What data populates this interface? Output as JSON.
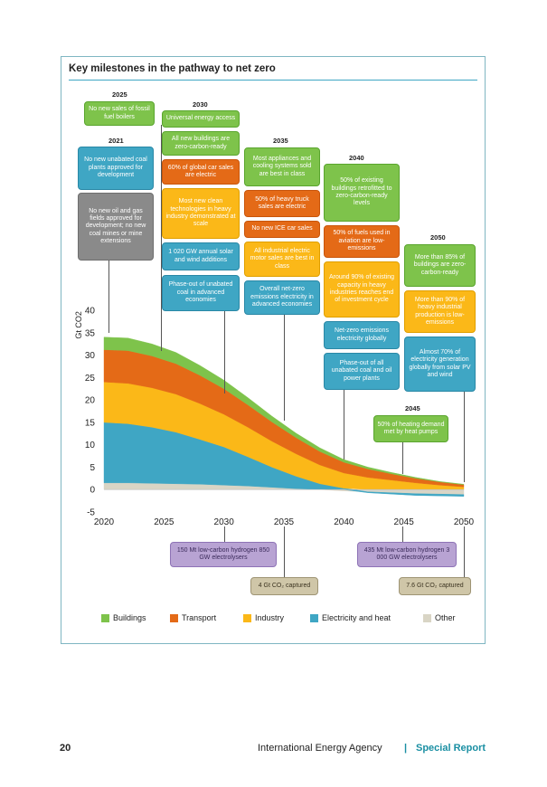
{
  "chart_data": {
    "type": "area",
    "title": "Key milestones in the pathway to net zero",
    "ylabel": "Gt CO2",
    "ylim": [
      -5,
      40
    ],
    "yticks": [
      -5,
      0,
      5,
      10,
      15,
      20,
      25,
      30,
      35,
      40
    ],
    "xlim": [
      2020,
      2050
    ],
    "xticks": [
      2020,
      2025,
      2030,
      2035,
      2040,
      2045,
      2050
    ],
    "x": [
      2020,
      2022,
      2024,
      2026,
      2028,
      2030,
      2032,
      2034,
      2036,
      2038,
      2040,
      2042,
      2044,
      2046,
      2048,
      2050
    ],
    "series": [
      {
        "name": "Other",
        "color": "#d9d5c5",
        "values": [
          1.5,
          1.5,
          1.4,
          1.3,
          1.2,
          1.0,
          0.8,
          0.5,
          0.2,
          0.0,
          -0.3,
          -0.5,
          -0.7,
          -0.9,
          -1.0,
          -1.1
        ]
      },
      {
        "name": "Electricity and heat",
        "color": "#3fa6c4",
        "values": [
          13.5,
          13.2,
          12.5,
          11.5,
          10.0,
          8.5,
          6.5,
          4.5,
          2.8,
          1.3,
          0.3,
          -0.2,
          -0.3,
          -0.4,
          -0.4,
          -0.4
        ]
      },
      {
        "name": "Industry",
        "color": "#fbb818",
        "values": [
          9.0,
          9.0,
          8.8,
          8.5,
          8.0,
          7.3,
          6.6,
          5.8,
          5.0,
          4.2,
          3.4,
          2.7,
          2.1,
          1.5,
          1.0,
          0.6
        ]
      },
      {
        "name": "Transport",
        "color": "#e46a17",
        "values": [
          7.2,
          7.3,
          7.1,
          6.8,
          6.3,
          5.7,
          5.0,
          4.3,
          3.6,
          3.0,
          2.4,
          1.9,
          1.4,
          1.0,
          0.7,
          0.5
        ]
      },
      {
        "name": "Buildings",
        "color": "#7ec34b",
        "values": [
          2.8,
          2.8,
          2.7,
          2.5,
          2.2,
          1.9,
          1.6,
          1.3,
          1.0,
          0.8,
          0.6,
          0.4,
          0.3,
          0.2,
          0.1,
          0.1
        ]
      }
    ],
    "legend_position": "bottom"
  },
  "years": {
    "y2021": "2021",
    "y2025": "2025",
    "y2030": "2030",
    "y2035": "2035",
    "y2040": "2040",
    "y2045": "2045",
    "y2050": "2050"
  },
  "milestones": {
    "m2025_fossil": "No new sales of fossil fuel boilers",
    "m2021_coal": "No new unabated coal plants approved for development",
    "m2021_oilgas": "No new oil and gas fields approved for development; no new coal mines or mine extensions",
    "m2030_universal": "Universal energy access",
    "m2030_buildings": "All new buildings are zero-carbon-ready",
    "m2030_cars": "60% of global car sales are electric",
    "m2030_industry": "Most new clean technologies in heavy industry demonstrated at scale",
    "m2030_solarwind": "1 020 GW annual solar and wind additions",
    "m2030_coal": "Phase-out of unabated coal in advanced economies",
    "m2035_appliances": "Most appliances and cooling systems sold are best in class",
    "m2035_truck": "50% of heavy truck sales are electric",
    "m2035_ice": "No new ICE car sales",
    "m2035_motor": "All industrial electric motor sales are best in class",
    "m2035_elec": "Overall net-zero emissions electricity in advanced economies",
    "m2040_retrofit": "50% of existing buildings retrofitted to zero-carbon-ready levels",
    "m2040_aviation": "50% of fuels used in aviation are low-emissions",
    "m2040_industrial": "Around 90% of existing capacity in heavy industries reaches end of investment cycle",
    "m2040_netzero": "Net-zero emissions electricity globally",
    "m2040_coal": "Phase-out of all unabated coal and oil power plants",
    "m2050_buildings": "More than 85% of buildings are zero-carbon-ready",
    "m2050_industrial": "More than 90% of heavy industrial production is low-emissions",
    "m2050_solar": "Almost 70% of electricity generation globally from solar PV and wind",
    "m2045_heat": "50% of heating demand met by heat pumps",
    "h2030": "150 Mt low-carbon hydrogen 850 GW electrolysers",
    "h2050": "435 Mt low-carbon hydrogen 3 000 GW electrolysers",
    "c2035": "4 Gt CO₂ captured",
    "c2050": "7.6 Gt CO₂ captured"
  },
  "legend": {
    "buildings": "Buildings",
    "transport": "Transport",
    "industry": "Industry",
    "electricity": "Electricity and heat",
    "other": "Other",
    "c_buildings": "#7ec34b",
    "c_transport": "#e46a17",
    "c_industry": "#fbb818",
    "c_electricity": "#3fa6c4",
    "c_other": "#d9d5c5"
  },
  "footer": {
    "page": "20",
    "org": "International Energy Agency",
    "sep": "|",
    "report": "Special Report"
  }
}
